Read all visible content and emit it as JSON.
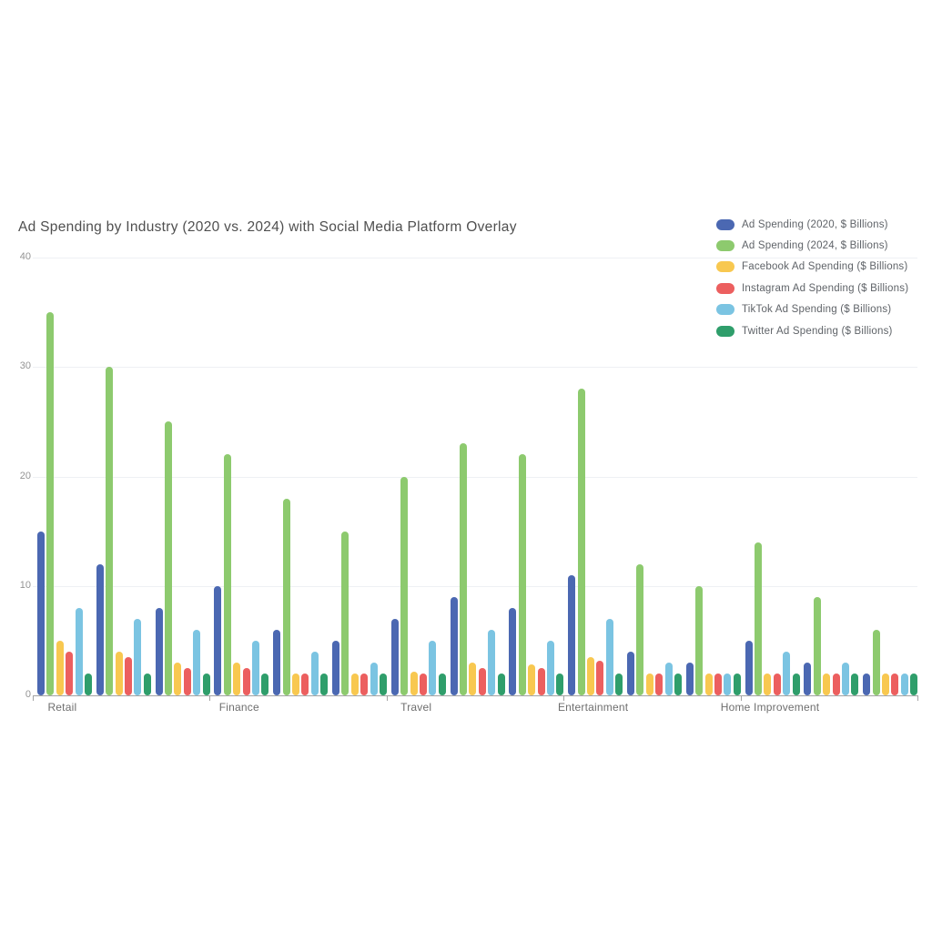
{
  "chart_data": {
    "type": "bar",
    "title": "Ad Spending by Industry (2020 vs. 2024) with Social Media Platform Overlay",
    "x_axis": {
      "num_groups": 15,
      "visible_labels": [
        "Retail",
        "Finance",
        "Travel",
        "Entertainment",
        "Home Improvement"
      ],
      "label_every_n_groups": 3
    },
    "y_axis": {
      "min": 0,
      "max": 40,
      "ticks": [
        0,
        10,
        20,
        30,
        40
      ]
    },
    "grid": true,
    "legend_position": "top-right",
    "series": [
      {
        "key": "2020",
        "name": "Ad Spending (2020, $ Billions)",
        "color": "#4b68b2",
        "values": [
          15,
          12,
          8,
          10,
          6,
          5,
          7,
          9,
          8,
          11,
          4,
          3,
          5,
          3,
          2
        ]
      },
      {
        "key": "2024",
        "name": "Ad Spending (2024, $ Billions)",
        "color": "#8dca6e",
        "values": [
          35,
          30,
          25,
          22,
          18,
          15,
          20,
          23,
          22,
          28,
          12,
          10,
          14,
          9,
          6
        ]
      },
      {
        "key": "facebook",
        "name": "Facebook Ad Spending ($ Billions)",
        "color": "#f8c850",
        "values": [
          5,
          4,
          3,
          3,
          2,
          2,
          2.2,
          3,
          2.8,
          3.5,
          2,
          2,
          2,
          2,
          2
        ]
      },
      {
        "key": "instagram",
        "name": "Instagram Ad Spending ($ Billions)",
        "color": "#ec5f5f",
        "values": [
          4,
          3.5,
          2.5,
          2.5,
          2,
          2,
          2,
          2.5,
          2.5,
          3.2,
          2,
          2,
          2,
          2,
          2
        ]
      },
      {
        "key": "tiktok",
        "name": "TikTok Ad Spending ($ Billions)",
        "color": "#7bc4e2",
        "values": [
          8,
          7,
          6,
          5,
          4,
          3,
          5,
          6,
          5,
          7,
          3,
          2,
          4,
          3,
          2
        ]
      },
      {
        "key": "twitter",
        "name": "Twitter Ad Spending ($ Billions)",
        "color": "#2f9e6b",
        "values": [
          2,
          2,
          2,
          2,
          2,
          2,
          2,
          2,
          2,
          2,
          2,
          2,
          2,
          2,
          2
        ]
      }
    ]
  }
}
